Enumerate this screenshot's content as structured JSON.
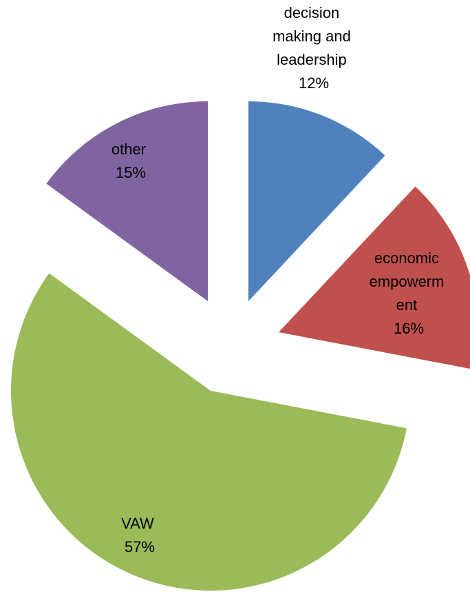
{
  "chart_data": {
    "type": "pie",
    "title": "",
    "slices": [
      {
        "label_lines": [
          "decision",
          "making and",
          "leadership"
        ],
        "percent_label": "12%",
        "value": 12,
        "color": "#4f81bd"
      },
      {
        "label_lines": [
          "economic",
          "empowerm",
          "ent"
        ],
        "percent_label": "16%",
        "value": 16,
        "color": "#c0504d"
      },
      {
        "label_lines": [
          "VAW"
        ],
        "percent_label": "57%",
        "value": 57,
        "color": "#9bbb59"
      },
      {
        "label_lines": [
          "other"
        ],
        "percent_label": "15%",
        "value": 15,
        "color": "#8064a2"
      }
    ],
    "exploded": true,
    "legend": "none"
  }
}
